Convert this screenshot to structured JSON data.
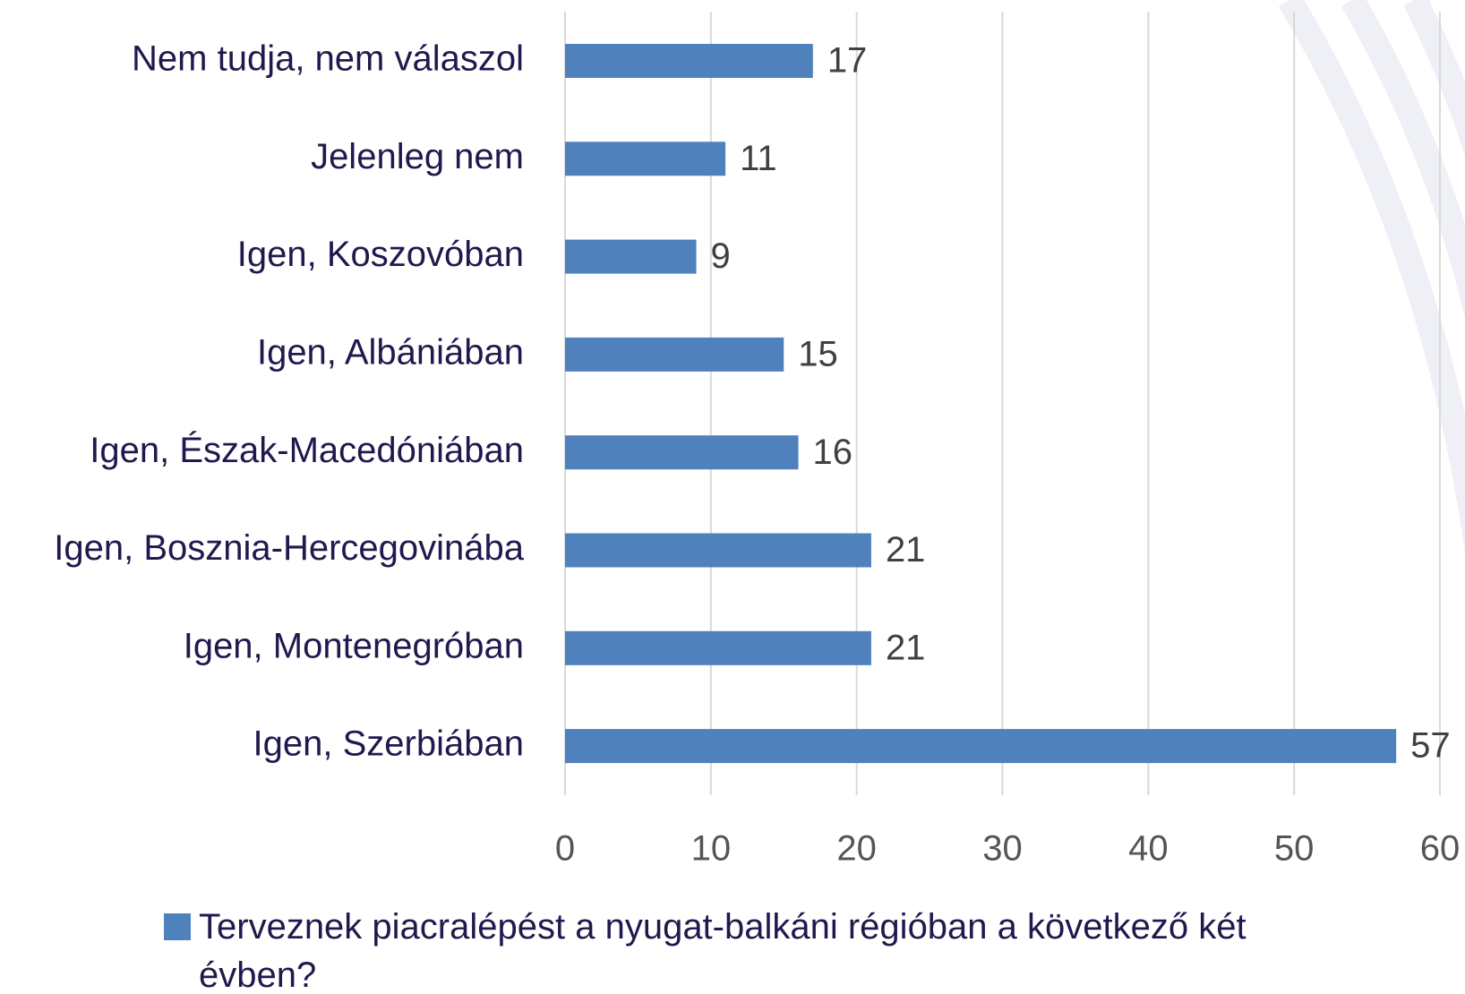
{
  "chart_data": {
    "type": "bar",
    "orientation": "horizontal",
    "categories": [
      "Nem tudja, nem válaszol",
      "Jelenleg nem",
      "Igen, Koszovóban",
      "Igen, Albániában",
      "Igen, Észak-Macedóniában",
      "Igen, Bosznia-Hercegovinába",
      "Igen, Montenegróban",
      "Igen, Szerbiában"
    ],
    "series": [
      {
        "name": "Terveznek piacralépést a nyugat-balkáni régióban a következő két évben?",
        "color": "#4f81bd",
        "values": [
          17,
          11,
          9,
          15,
          16,
          21,
          21,
          57
        ]
      }
    ],
    "xlim": [
      0,
      60
    ],
    "xticks": [
      0,
      10,
      20,
      30,
      40,
      50,
      60
    ],
    "grid": true,
    "legend": "bottom"
  }
}
